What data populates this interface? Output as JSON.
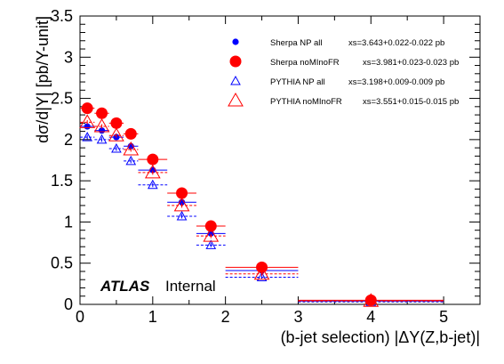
{
  "chart_data": {
    "type": "scatter",
    "title": "",
    "xlabel": "(b-jet selection) |ΔY(Z,b-jet)|",
    "ylabel": "dσ/d|Y| [pb/Y-unit]",
    "xlim": [
      0,
      5.5
    ],
    "ylim": [
      0,
      3.5
    ],
    "xticks": [
      "0",
      "1",
      "2",
      "3",
      "4",
      "5"
    ],
    "yticks": [
      "0",
      "0.5",
      "1",
      "1.5",
      "2",
      "2.5",
      "3",
      "3.5"
    ],
    "grid": false,
    "legend_position": "top-right",
    "bins": [
      {
        "lo": 0.0,
        "hi": 0.2
      },
      {
        "lo": 0.2,
        "hi": 0.4
      },
      {
        "lo": 0.4,
        "hi": 0.6
      },
      {
        "lo": 0.6,
        "hi": 0.8
      },
      {
        "lo": 0.8,
        "hi": 1.2
      },
      {
        "lo": 1.2,
        "hi": 1.6
      },
      {
        "lo": 1.6,
        "hi": 2.0
      },
      {
        "lo": 2.0,
        "hi": 3.0
      },
      {
        "lo": 3.0,
        "hi": 5.0
      }
    ],
    "series": [
      {
        "name": "Sherpa NP all",
        "xs_label": "xs=3.643+0.022-0.022 pb",
        "marker": "small-circle",
        "color": "#0000ff",
        "x": [
          0.1,
          0.3,
          0.5,
          0.7,
          1.0,
          1.4,
          1.8,
          2.5,
          4.0
        ],
        "y": [
          2.16,
          2.11,
          2.03,
          1.92,
          1.63,
          1.24,
          0.86,
          0.41,
          0.04
        ]
      },
      {
        "name": "Sherpa noMInoFR",
        "xs_label": "xs=3.981+0.023-0.023 pb",
        "marker": "large-circle",
        "color": "#ff0000",
        "x": [
          0.1,
          0.3,
          0.5,
          0.7,
          1.0,
          1.4,
          1.8,
          2.5,
          4.0
        ],
        "y": [
          2.38,
          2.32,
          2.2,
          2.07,
          1.76,
          1.35,
          0.95,
          0.45,
          0.05
        ]
      },
      {
        "name": "PYTHIA NP all",
        "xs_label": "xs=3.198+0.009-0.009 pb",
        "marker": "small-open-triangle",
        "color": "#0000ff",
        "x": [
          0.1,
          0.3,
          0.5,
          0.7,
          1.0,
          1.4,
          1.8,
          2.5,
          4.0
        ],
        "y": [
          2.03,
          2.0,
          1.89,
          1.74,
          1.45,
          1.07,
          0.72,
          0.33,
          0.03
        ]
      },
      {
        "name": "PYTHIA noMInoFR",
        "xs_label": "xs=3.551+0.015-0.015 pb",
        "marker": "large-open-triangle",
        "color": "#ff0000",
        "x": [
          0.1,
          0.3,
          0.5,
          0.7,
          1.0,
          1.4,
          1.8,
          2.5,
          4.0
        ],
        "y": [
          2.21,
          2.16,
          2.05,
          1.88,
          1.6,
          1.2,
          0.83,
          0.37,
          0.04
        ]
      }
    ],
    "annotations": {
      "atlas": "ATLAS",
      "internal": "Internal"
    }
  }
}
